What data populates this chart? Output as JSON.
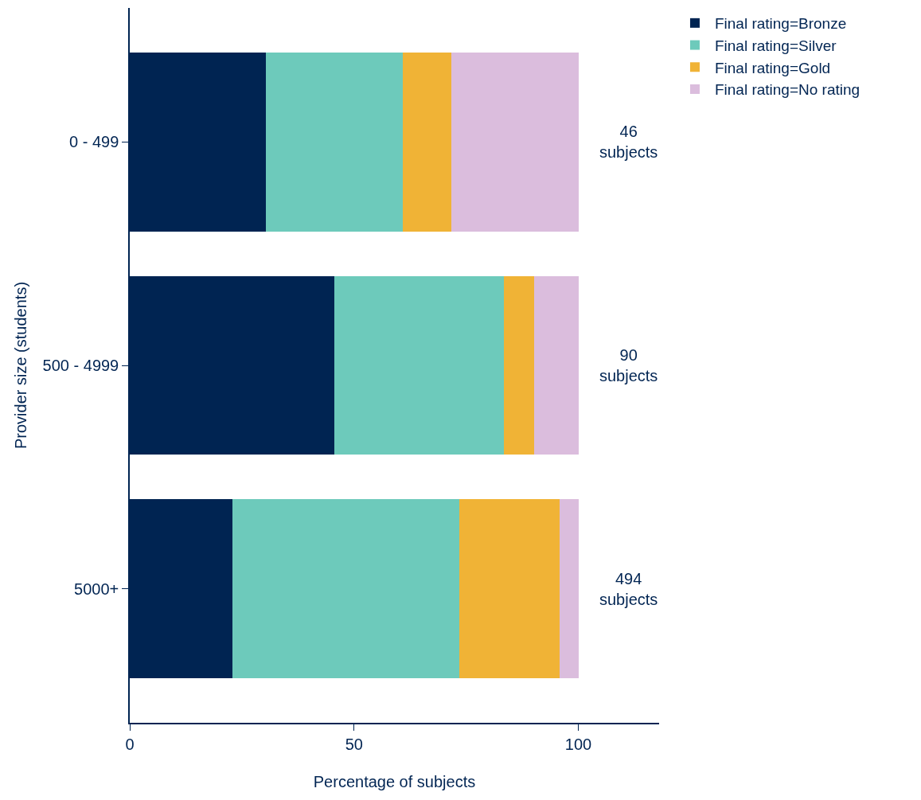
{
  "chart_data": {
    "type": "bar",
    "orientation": "horizontal",
    "stacked": true,
    "xlabel": "Percentage of subjects",
    "ylabel": "Provider size (students)",
    "categories": [
      "0 - 499",
      "500 - 4999",
      "5000+"
    ],
    "series": [
      {
        "name": "Final rating=Bronze",
        "color": "#002452",
        "values": [
          30.4,
          45.6,
          22.9
        ]
      },
      {
        "name": "Final rating=Silver",
        "color": "#6dcabb",
        "values": [
          30.4,
          37.8,
          50.6
        ]
      },
      {
        "name": "Final rating=Gold",
        "color": "#f0b336",
        "values": [
          10.9,
          6.7,
          22.3
        ]
      },
      {
        "name": "Final rating=No rating",
        "color": "#dbbddd",
        "values": [
          28.3,
          10.0,
          4.3
        ]
      }
    ],
    "annotations": [
      "46\nsubjects",
      "90\nsubjects",
      "494\nsubjects"
    ],
    "xlim": [
      0,
      118
    ],
    "xticks": [
      0,
      50,
      100
    ],
    "legend": "top right"
  }
}
